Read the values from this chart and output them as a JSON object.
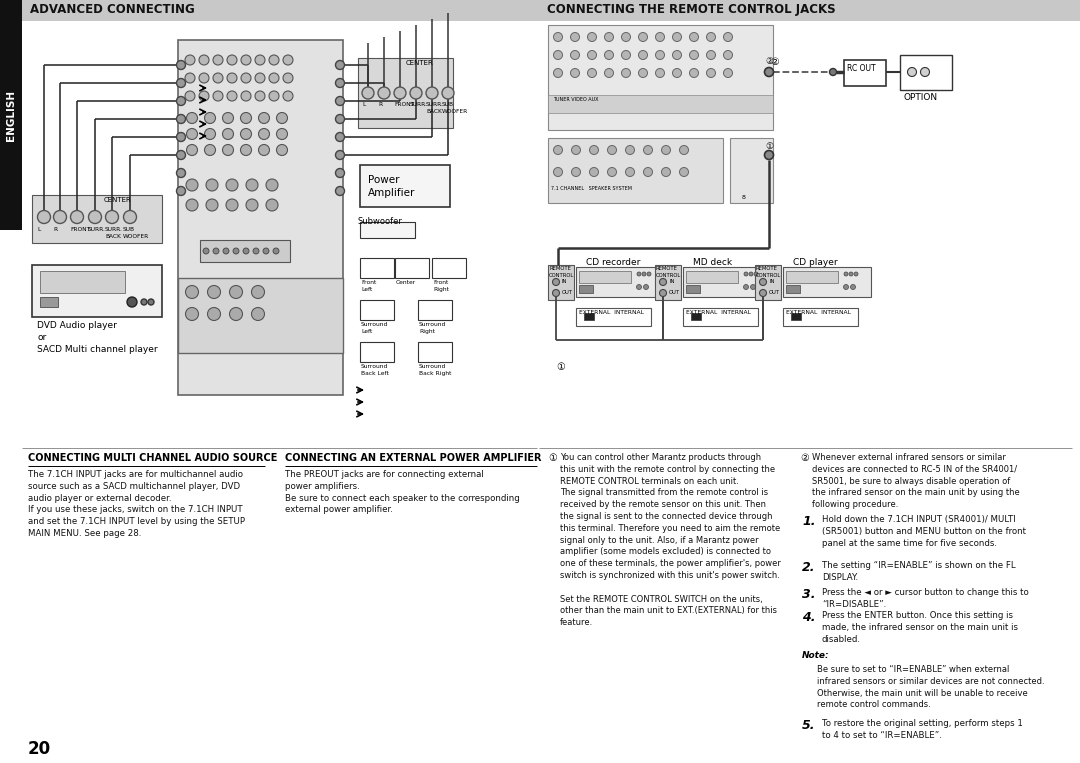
{
  "page_bg": "#ffffff",
  "header_bg": "#c8c8c8",
  "sidebar_bg": "#111111",
  "sidebar_text": "ENGLISH",
  "left_header": "ADVANCED CONNECTING",
  "right_header": "CONNECTING THE REMOTE CONTROL JACKS",
  "section1_title": "CONNECTING MULTI CHANNEL AUDIO SOURCE",
  "section1_text": "The 7.1CH INPUT jacks are for multichannel audio\nsource such as a SACD multichannel player, DVD\naudio player or external decoder.\nIf you use these jacks, switch on the 7.1CH INPUT\nand set the 7.1CH INPUT level by using the SETUP\nMAIN MENU. See page 28.",
  "section2_title": "CONNECTING AN EXTERNAL POWER AMPLIFIER",
  "section2_text": "The PREOUT jacks are for connecting external\npower amplifiers.\nBe sure to connect each speaker to the corresponding\nexternal power amplifier.",
  "anno1_text": "You can control other Marantz products through\nthis unit with the remote control by connecting the\nREMOTE CONTROL terminals on each unit.\nThe signal transmitted from the remote control is\nreceived by the remote sensor on this unit. Then\nthe signal is sent to the connected device through\nthis terminal. Therefore you need to aim the remote\nsignal only to the unit. Also, if a Marantz power\namplifier (some models excluded) is connected to\none of these terminals, the power amplifier's, power\nswitch is synchronized with this unit's power switch.\n\nSet the REMOTE CONTROL SWITCH on the units,\nother than the main unit to EXT.(EXTERNAL) for this\nfeature.",
  "anno2_text": "Whenever external infrared sensors or similar\ndevices are connected to RC-5 IN of the SR4001/\nSR5001, be sure to always disable operation of\nthe infrared sensor on the main unit by using the\nfollowing procedure.",
  "num1": "Hold down the 7.1CH INPUT (SR4001)/ MULTI\n(SR5001) button and MENU button on the front\npanel at the same time for five seconds.",
  "num2": "The setting “IR=ENABLE” is shown on the FL\nDISPLAY.",
  "num3": "Press the ◄ or ► cursor button to change this to\n“IR=DISABLE”.",
  "num4": "Press the ENTER button. Once this setting is\nmade, the infrared sensor on the main unit is\ndisabled.",
  "note_title": "Note:",
  "note_text": "Be sure to set to “IR=ENABLE” when external\ninfrared sensors or similar devices are not connected.\nOtherwise, the main unit will be unable to receive\nremote control commands.",
  "num5": "To restore the original setting, perform steps 1\nto 4 to set to “IR=ENABLE”.",
  "dvd_label": "DVD Audio player\nor\nSACD Multi channel player",
  "power_amp_label": "Power\nAmplifier",
  "subwoofer_label": "Subwoofer",
  "option_label": "OPTION",
  "rc_out_label": "RC OUT",
  "cd_recorder_label": "CD recorder",
  "md_deck_label": "MD deck",
  "cd_player_label": "CD player",
  "remote_control_label": "REMOTE\nCONTROL",
  "external_internal_label": "EXTERNAL  INTERNAL",
  "page_number": "20",
  "circle1": "①",
  "circle2": "②"
}
